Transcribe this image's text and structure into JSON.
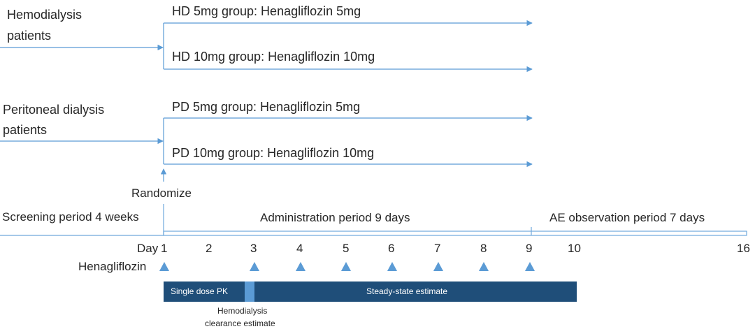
{
  "patients": {
    "hemodialysis": [
      "Hemodialysis",
      "patients"
    ],
    "peritoneal": [
      "Peritoneal dialysis",
      "patients"
    ]
  },
  "groups": [
    "HD 5mg group: Henagliflozin 5mg",
    "HD 10mg group: Henagliflozin 10mg",
    "PD 5mg group: Henagliflozin 5mg",
    "PD 10mg group: Henagliflozin 10mg"
  ],
  "randomize_label": "Randomize",
  "periods": {
    "screening": "Screening period 4 weeks",
    "administration": "Administration period 9 days",
    "observation": "AE observation period 7 days"
  },
  "timeline": {
    "day_prefix": "Day",
    "days": [
      "1",
      "2",
      "3",
      "4",
      "5",
      "6",
      "7",
      "8",
      "9",
      "10",
      "16"
    ],
    "dose_label": "Henagliflozin",
    "dose_days": [
      "1",
      "3",
      "4",
      "5",
      "6",
      "7",
      "8",
      "9"
    ]
  },
  "bars": {
    "single_dose": "Single dose PK",
    "steady_state": "Steady-state estimate",
    "clearance_note": [
      "Hemodialysis",
      "clearance estimate"
    ]
  },
  "colors": {
    "arrow": "#5b9bd5",
    "timeline_box": "#6fa8dc",
    "triangle": "#5b9bd5",
    "bar_dark": "#1f4e79",
    "bar_light": "#5b9bd5"
  }
}
